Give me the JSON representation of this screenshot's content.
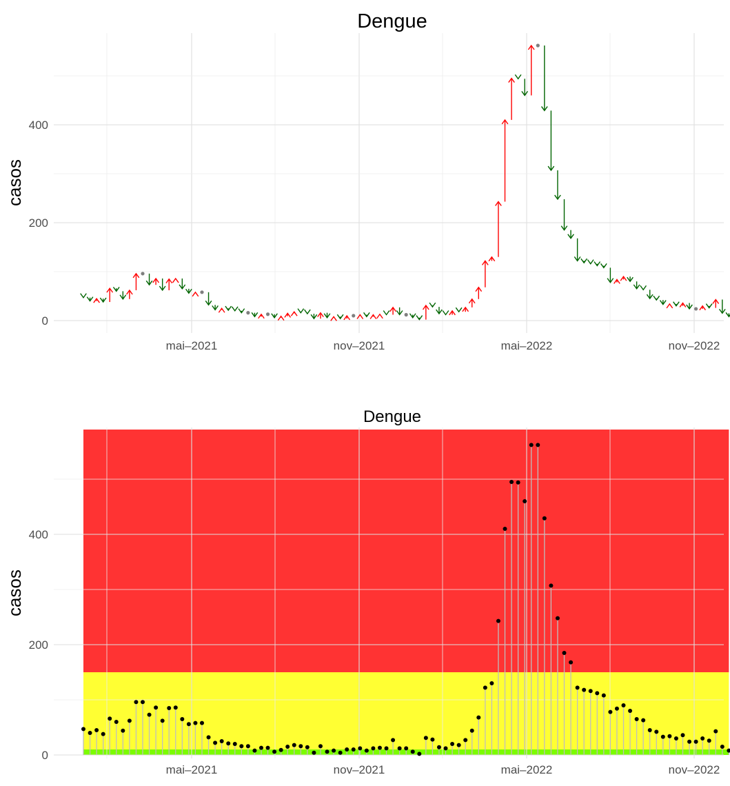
{
  "chart_data": [
    {
      "type": "line",
      "title": "Dengue",
      "ylabel": "casos",
      "xlabel": "",
      "x_ticks": [
        "mai–2021",
        "nov–2021",
        "mai–2022",
        "nov–2022"
      ],
      "y_ticks": [
        "0",
        "200",
        "400"
      ],
      "ylim": [
        -25,
        590
      ],
      "grid": true,
      "legend": "none",
      "marks": "arrow per week from previous value; red = increase, green = decrease, grey dot = no change",
      "colors": {
        "up": "#ff0000",
        "down": "#006400",
        "same": "#7f7f7f"
      },
      "series": [
        {
          "values": [
            47,
            40,
            45,
            38,
            66,
            60,
            44,
            62,
            96,
            96,
            73,
            86,
            62,
            85,
            86,
            65,
            56,
            58,
            58,
            32,
            22,
            25,
            21,
            20,
            16,
            16,
            8,
            13,
            13,
            6,
            9,
            15,
            18,
            16,
            14,
            4,
            16,
            6,
            8,
            4,
            10,
            10,
            12,
            8,
            12,
            13,
            12,
            27,
            12,
            12,
            6,
            2,
            31,
            28,
            14,
            12,
            20,
            18,
            27,
            44,
            68,
            122,
            130,
            243,
            410,
            495,
            494,
            460,
            562,
            562,
            429,
            307,
            248,
            185,
            168,
            122,
            118,
            116,
            112,
            108,
            78,
            84,
            90,
            80,
            65,
            63,
            45,
            42,
            33,
            34,
            30,
            36,
            24,
            24,
            30,
            26,
            43,
            15,
            8
          ]
        }
      ]
    },
    {
      "type": "bar",
      "title": "Dengue",
      "ylabel": "casos",
      "xlabel": "",
      "x_ticks": [
        "mai–2021",
        "nov–2021",
        "mai–2022",
        "nov–2022"
      ],
      "y_ticks": [
        "0",
        "200",
        "400"
      ],
      "ylim": [
        -25,
        590
      ],
      "grid": true,
      "legend": "none",
      "marks": "lollipop: grey stem from 0 to value with black point",
      "background_bands": [
        {
          "from": 0,
          "to": 10,
          "color": "#7cfc00"
        },
        {
          "from": 10,
          "to": 150,
          "color": "#ffff33"
        },
        {
          "from": 150,
          "to": 590,
          "color": "#ff3333"
        }
      ],
      "colors": {
        "point": "#000000",
        "stem": "#bebebe"
      },
      "series": [
        {
          "values": [
            47,
            40,
            45,
            38,
            66,
            60,
            44,
            62,
            96,
            96,
            73,
            86,
            62,
            85,
            86,
            65,
            56,
            58,
            58,
            32,
            22,
            25,
            21,
            20,
            16,
            16,
            8,
            13,
            13,
            6,
            9,
            15,
            18,
            16,
            14,
            4,
            16,
            6,
            8,
            4,
            10,
            10,
            12,
            8,
            12,
            13,
            12,
            27,
            12,
            12,
            6,
            2,
            31,
            28,
            14,
            12,
            20,
            18,
            27,
            44,
            68,
            122,
            130,
            243,
            410,
            495,
            494,
            460,
            562,
            562,
            429,
            307,
            248,
            185,
            168,
            122,
            118,
            116,
            112,
            108,
            78,
            84,
            90,
            80,
            65,
            63,
            45,
            42,
            33,
            34,
            30,
            36,
            24,
            24,
            30,
            26,
            43,
            15,
            8
          ]
        }
      ]
    }
  ]
}
